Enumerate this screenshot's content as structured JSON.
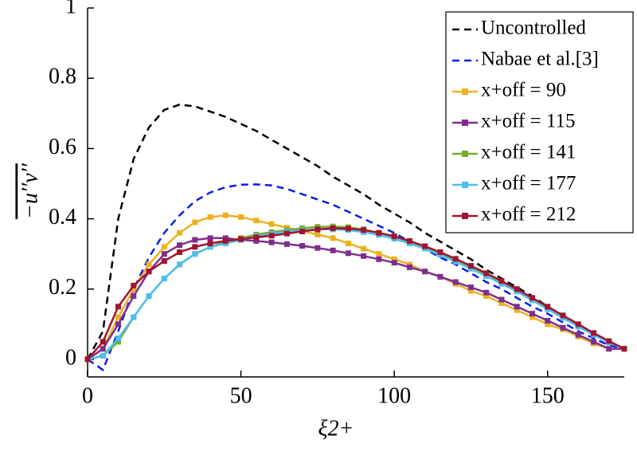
{
  "chart_data": {
    "type": "line",
    "xlabel": "ξ2+",
    "ylabel": "−u′′v′′",
    "x": [
      0,
      5,
      10,
      15,
      20,
      25,
      30,
      35,
      40,
      45,
      50,
      55,
      60,
      65,
      70,
      75,
      80,
      85,
      90,
      95,
      100,
      105,
      110,
      115,
      120,
      125,
      130,
      135,
      140,
      145,
      150,
      155,
      160,
      165,
      170,
      175
    ],
    "series": [
      {
        "name": "Uncontrolled",
        "color": "#000000",
        "linestyle": "dashed",
        "marker": "none",
        "values": [
          0,
          0.08,
          0.4,
          0.57,
          0.66,
          0.71,
          0.725,
          0.72,
          0.705,
          0.69,
          0.67,
          0.65,
          0.625,
          0.6,
          0.575,
          0.55,
          0.52,
          0.495,
          0.47,
          0.44,
          0.415,
          0.39,
          0.36,
          0.335,
          0.31,
          0.285,
          0.255,
          0.23,
          0.205,
          0.18,
          0.15,
          0.125,
          0.1,
          0.075,
          0.05,
          0.03
        ]
      },
      {
        "name": "Nabae et al.[3]",
        "color": "#0a1ee6",
        "linestyle": "dashed",
        "marker": "none",
        "values": [
          0,
          -0.03,
          0.08,
          0.2,
          0.29,
          0.36,
          0.41,
          0.45,
          0.475,
          0.49,
          0.497,
          0.498,
          0.495,
          0.485,
          0.47,
          0.455,
          0.44,
          0.42,
          0.4,
          0.38,
          0.36,
          0.335,
          0.315,
          0.29,
          0.27,
          0.245,
          0.22,
          0.2,
          0.175,
          0.15,
          0.13,
          0.105,
          0.08,
          0.06,
          0.04,
          0.03
        ]
      },
      {
        "name": "x+off = 90",
        "color": "#edb120",
        "linestyle": "solid",
        "marker": "square",
        "values": [
          0,
          0.03,
          0.12,
          0.2,
          0.27,
          0.32,
          0.36,
          0.39,
          0.405,
          0.41,
          0.405,
          0.395,
          0.385,
          0.375,
          0.365,
          0.355,
          0.345,
          0.33,
          0.315,
          0.3,
          0.285,
          0.27,
          0.25,
          0.235,
          0.215,
          0.195,
          0.18,
          0.16,
          0.14,
          0.12,
          0.1,
          0.085,
          0.065,
          0.045,
          0.03,
          0.03
        ]
      },
      {
        "name": "x+off = 115",
        "color": "#7e2f8e",
        "linestyle": "solid",
        "marker": "square",
        "values": [
          0,
          0.03,
          0.1,
          0.18,
          0.25,
          0.3,
          0.325,
          0.34,
          0.345,
          0.345,
          0.34,
          0.337,
          0.333,
          0.328,
          0.323,
          0.317,
          0.31,
          0.302,
          0.294,
          0.285,
          0.275,
          0.262,
          0.25,
          0.235,
          0.22,
          0.205,
          0.19,
          0.17,
          0.15,
          0.13,
          0.11,
          0.09,
          0.07,
          0.05,
          0.03,
          0.03
        ]
      },
      {
        "name": "x+off = 141",
        "color": "#77ac30",
        "linestyle": "solid",
        "marker": "square",
        "values": [
          0,
          0.01,
          0.05,
          0.12,
          0.18,
          0.23,
          0.27,
          0.3,
          0.32,
          0.335,
          0.345,
          0.355,
          0.362,
          0.368,
          0.373,
          0.377,
          0.378,
          0.376,
          0.37,
          0.36,
          0.35,
          0.335,
          0.32,
          0.3,
          0.28,
          0.26,
          0.24,
          0.22,
          0.195,
          0.17,
          0.145,
          0.12,
          0.095,
          0.07,
          0.05,
          0.03
        ]
      },
      {
        "name": "x+off = 177",
        "color": "#4dbeee",
        "linestyle": "solid",
        "marker": "square",
        "values": [
          0,
          0.01,
          0.06,
          0.12,
          0.18,
          0.23,
          0.27,
          0.3,
          0.32,
          0.33,
          0.34,
          0.35,
          0.357,
          0.363,
          0.367,
          0.37,
          0.37,
          0.368,
          0.362,
          0.354,
          0.343,
          0.33,
          0.315,
          0.297,
          0.278,
          0.258,
          0.237,
          0.215,
          0.193,
          0.168,
          0.143,
          0.118,
          0.093,
          0.07,
          0.048,
          0.03
        ]
      },
      {
        "name": "x+off = 212",
        "color": "#a2142f",
        "linestyle": "solid",
        "marker": "square",
        "values": [
          0,
          0.05,
          0.15,
          0.21,
          0.25,
          0.28,
          0.305,
          0.32,
          0.33,
          0.337,
          0.342,
          0.347,
          0.352,
          0.358,
          0.364,
          0.37,
          0.373,
          0.372,
          0.368,
          0.36,
          0.35,
          0.337,
          0.322,
          0.305,
          0.286,
          0.266,
          0.245,
          0.223,
          0.2,
          0.175,
          0.15,
          0.125,
          0.1,
          0.075,
          0.052,
          0.03
        ]
      }
    ],
    "xlim": [
      0,
      175
    ],
    "xticks": [
      0,
      50,
      100,
      150
    ],
    "ylim": [
      -0.05,
      1
    ],
    "yticks": [
      0,
      0.2,
      0.4,
      0.6,
      0.8,
      1
    ],
    "legend": "upper right"
  }
}
